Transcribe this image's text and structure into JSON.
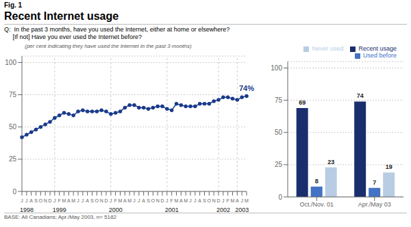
{
  "chart_data": [
    {
      "type": "line",
      "title": "Recent Internet usage",
      "subtitle": "(per cent indicating they have used the Internet in the past 3 months)",
      "annotations": [
        {
          "text": "Fig. 1"
        },
        {
          "text": "Q:  In the past 3 months, have you used the Internet, either at home or elsewhere?"
        },
        {
          "text": "     [If not] Have you ever used the Internet before?"
        },
        {
          "text": "74%",
          "x": 48,
          "y": 74
        },
        {
          "text": "BASE: All Canadians; Apr./May 2003, n= 5182"
        }
      ],
      "categories": [
        "J",
        "J",
        "A",
        "S",
        "O",
        "N",
        "D",
        "J",
        "F",
        "M",
        "A",
        "M",
        "J",
        "J",
        "A",
        "S",
        "O",
        "N",
        "D",
        "J",
        "F",
        "M",
        "A",
        "M",
        "J",
        "J",
        "A",
        "S",
        "O",
        "N",
        "D",
        "J",
        "F",
        "M",
        "A",
        "M",
        "J",
        "J",
        "A",
        "S",
        "O",
        "N",
        "D",
        "J",
        "F",
        "M",
        "A",
        "J",
        "M"
      ],
      "x_groups": [
        {
          "label": "1998",
          "start": 0
        },
        {
          "label": "1999",
          "start": 7
        },
        {
          "label": "2000",
          "start": 19
        },
        {
          "label": "2001",
          "start": 31
        },
        {
          "label": "2002",
          "start": 42
        },
        {
          "label": "2003",
          "start": 46
        }
      ],
      "values": [
        42,
        44,
        46,
        48,
        50,
        52,
        54,
        57,
        59,
        61,
        60,
        59,
        62,
        63,
        62,
        62,
        62,
        63,
        62,
        60,
        61,
        62,
        65,
        67,
        67,
        65,
        65,
        64,
        65,
        66,
        66,
        64,
        63,
        68,
        67,
        66,
        66,
        66,
        68,
        68,
        68,
        70,
        71,
        73,
        73,
        72,
        71,
        73,
        74
      ],
      "color": "#1a3a8c",
      "marker": "circle",
      "ylim": [
        0,
        105
      ],
      "yticks": [
        0,
        25,
        50,
        75,
        100
      ],
      "grid": true
    },
    {
      "type": "bar",
      "categories": [
        "Oct./Nov. 01",
        "Apr./May 03"
      ],
      "series": [
        {
          "name": "Recent usage",
          "color": "#1a2e6e",
          "values": [
            69,
            74
          ]
        },
        {
          "name": "Used before",
          "color": "#4472c4",
          "values": [
            8,
            7
          ]
        },
        {
          "name": "Never used",
          "color": "#b8cce4",
          "values": [
            23,
            19
          ]
        }
      ],
      "ylim": [
        0,
        105
      ],
      "yticks": [
        0,
        25,
        50,
        75,
        100
      ],
      "grid": true,
      "legend": "top right",
      "data_labels": true
    }
  ]
}
